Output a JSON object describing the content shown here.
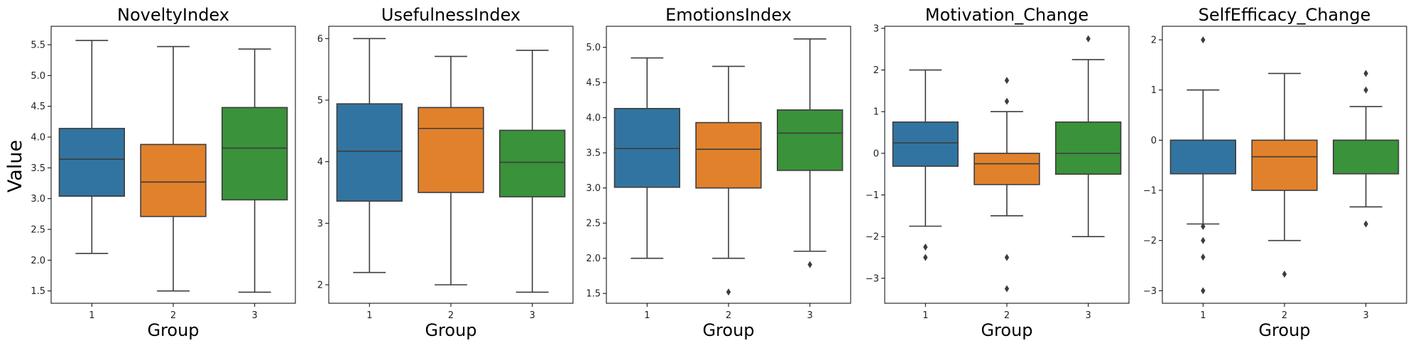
{
  "figure": {
    "ylabel": "Value",
    "xlabel": "Group"
  },
  "colors": {
    "1": "#3274a1",
    "2": "#e1812c",
    "3": "#3a923a",
    "line": "#3d3d3d"
  },
  "chart_data": [
    {
      "type": "box",
      "title": "NoveltyIndex",
      "xlabel": "Group",
      "ylabel": "Value",
      "categories": [
        "1",
        "2",
        "3"
      ],
      "ylim": [
        1.3,
        5.8
      ],
      "yticks": [
        1.5,
        2.0,
        2.5,
        3.0,
        3.5,
        4.0,
        4.5,
        5.0,
        5.5
      ],
      "ytick_labels": [
        "1.5",
        "2.0",
        "2.5",
        "3.0",
        "3.5",
        "4.0",
        "4.5",
        "5.0",
        "5.5"
      ],
      "boxes": [
        {
          "group": "1",
          "whislo": 2.11,
          "q1": 3.04,
          "med": 3.64,
          "q3": 4.14,
          "whishi": 5.57,
          "fliers": []
        },
        {
          "group": "2",
          "whislo": 1.5,
          "q1": 2.71,
          "med": 3.27,
          "q3": 3.88,
          "whishi": 5.47,
          "fliers": []
        },
        {
          "group": "3",
          "whislo": 1.48,
          "q1": 2.98,
          "med": 3.82,
          "q3": 4.48,
          "whishi": 5.43,
          "fliers": []
        }
      ]
    },
    {
      "type": "box",
      "title": "UsefulnessIndex",
      "xlabel": "Group",
      "ylabel": "",
      "categories": [
        "1",
        "2",
        "3"
      ],
      "ylim": [
        1.7,
        6.2
      ],
      "yticks": [
        2,
        3,
        4,
        5,
        6
      ],
      "ytick_labels": [
        "2",
        "3",
        "4",
        "5",
        "6"
      ],
      "boxes": [
        {
          "group": "1",
          "whislo": 2.2,
          "q1": 3.36,
          "med": 4.17,
          "q3": 4.94,
          "whishi": 6.0,
          "fliers": []
        },
        {
          "group": "2",
          "whislo": 2.0,
          "q1": 3.5,
          "med": 4.54,
          "q3": 4.88,
          "whishi": 5.71,
          "fliers": []
        },
        {
          "group": "3",
          "whislo": 1.88,
          "q1": 3.43,
          "med": 3.99,
          "q3": 4.51,
          "whishi": 5.81,
          "fliers": []
        }
      ]
    },
    {
      "type": "box",
      "title": "EmotionsIndex",
      "xlabel": "Group",
      "ylabel": "",
      "categories": [
        "1",
        "2",
        "3"
      ],
      "ylim": [
        1.36,
        5.3
      ],
      "yticks": [
        1.5,
        2.0,
        2.5,
        3.0,
        3.5,
        4.0,
        4.5,
        5.0
      ],
      "ytick_labels": [
        "1.5",
        "2.0",
        "2.5",
        "3.0",
        "3.5",
        "4.0",
        "4.5",
        "5.0"
      ],
      "boxes": [
        {
          "group": "1",
          "whislo": 2.0,
          "q1": 3.01,
          "med": 3.56,
          "q3": 4.13,
          "whishi": 4.85,
          "fliers": []
        },
        {
          "group": "2",
          "whislo": 2.0,
          "q1": 3.0,
          "med": 3.55,
          "q3": 3.93,
          "whishi": 4.73,
          "fliers": [
            1.52
          ]
        },
        {
          "group": "3",
          "whislo": 2.1,
          "q1": 3.25,
          "med": 3.78,
          "q3": 4.11,
          "whishi": 5.12,
          "fliers": [
            1.91
          ]
        }
      ]
    },
    {
      "type": "box",
      "title": "Motivation_Change",
      "xlabel": "Group",
      "ylabel": "",
      "categories": [
        "1",
        "2",
        "3"
      ],
      "ylim": [
        -3.6,
        3.05
      ],
      "yticks": [
        -3,
        -2,
        -1,
        0,
        1,
        2,
        3
      ],
      "ytick_labels": [
        "−3",
        "−2",
        "−1",
        "0",
        "1",
        "2",
        "3"
      ],
      "boxes": [
        {
          "group": "1",
          "whislo": -1.75,
          "q1": -0.31,
          "med": 0.25,
          "q3": 0.75,
          "whishi": 2.0,
          "fliers": [
            -2.25,
            -2.5
          ]
        },
        {
          "group": "2",
          "whislo": -1.5,
          "q1": -0.75,
          "med": -0.25,
          "q3": 0.0,
          "whishi": 1.0,
          "fliers": [
            1.75,
            1.25,
            -2.5,
            -3.25
          ]
        },
        {
          "group": "3",
          "whislo": -2.0,
          "q1": -0.5,
          "med": 0.0,
          "q3": 0.75,
          "whishi": 2.25,
          "fliers": [
            2.75
          ]
        }
      ]
    },
    {
      "type": "box",
      "title": "SelfEfficacy_Change",
      "xlabel": "Group",
      "ylabel": "",
      "categories": [
        "1",
        "2",
        "3"
      ],
      "ylim": [
        -3.25,
        2.27
      ],
      "yticks": [
        -3,
        -2,
        -1,
        0,
        1,
        2
      ],
      "ytick_labels": [
        "−3",
        "−2",
        "−1",
        "0",
        "1",
        "2"
      ],
      "boxes": [
        {
          "group": "1",
          "whislo": -1.67,
          "q1": -0.67,
          "med": 0.0,
          "q3": 0.0,
          "whishi": 1.0,
          "fliers": [
            2.0,
            -1.72,
            -2.0,
            -2.33,
            -3.0
          ]
        },
        {
          "group": "2",
          "whislo": -2.0,
          "q1": -1.0,
          "med": -0.33,
          "q3": 0.0,
          "whishi": 1.33,
          "fliers": [
            -2.67
          ]
        },
        {
          "group": "3",
          "whislo": -1.33,
          "q1": -0.67,
          "med": 0.0,
          "q3": 0.0,
          "whishi": 0.67,
          "fliers": [
            1.33,
            1.0,
            -1.67
          ]
        }
      ]
    }
  ]
}
